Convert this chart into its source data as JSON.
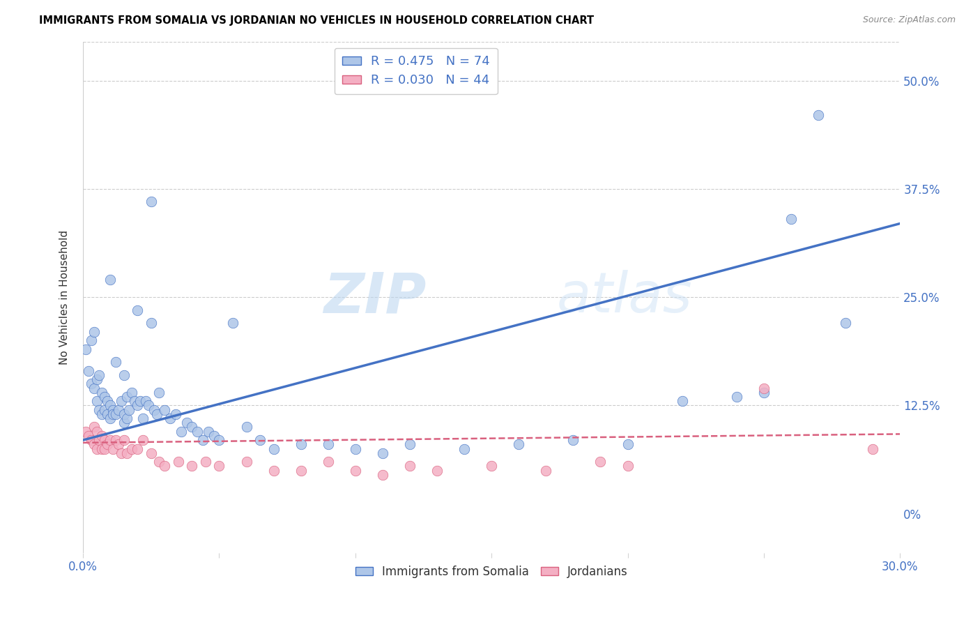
{
  "title": "IMMIGRANTS FROM SOMALIA VS JORDANIAN NO VEHICLES IN HOUSEHOLD CORRELATION CHART",
  "source": "Source: ZipAtlas.com",
  "ylabel": "No Vehicles in Household",
  "ytick_labels": [
    "0%",
    "12.5%",
    "25.0%",
    "37.5%",
    "50.0%"
  ],
  "ytick_values": [
    0.0,
    0.125,
    0.25,
    0.375,
    0.5
  ],
  "xlim": [
    0.0,
    0.3
  ],
  "ylim": [
    -0.045,
    0.545
  ],
  "legend_label1": "Immigrants from Somalia",
  "legend_label2": "Jordanians",
  "r1": 0.475,
  "n1": 74,
  "r2": 0.03,
  "n2": 44,
  "color_somalia": "#aec6e8",
  "color_somalia_line": "#4472c4",
  "color_jordan": "#f4afc3",
  "color_jordan_line": "#d9607e",
  "background_color": "#ffffff",
  "watermark_zip": "ZIP",
  "watermark_atlas": "atlas",
  "somalia_x": [
    0.001,
    0.002,
    0.003,
    0.003,
    0.004,
    0.004,
    0.005,
    0.005,
    0.006,
    0.006,
    0.007,
    0.007,
    0.008,
    0.008,
    0.009,
    0.009,
    0.01,
    0.01,
    0.011,
    0.011,
    0.012,
    0.013,
    0.014,
    0.015,
    0.015,
    0.016,
    0.016,
    0.017,
    0.018,
    0.019,
    0.02,
    0.021,
    0.022,
    0.023,
    0.024,
    0.025,
    0.026,
    0.027,
    0.028,
    0.03,
    0.032,
    0.034,
    0.036,
    0.038,
    0.04,
    0.042,
    0.044,
    0.046,
    0.048,
    0.05,
    0.055,
    0.06,
    0.065,
    0.07,
    0.08,
    0.09,
    0.1,
    0.11,
    0.12,
    0.14,
    0.16,
    0.18,
    0.2,
    0.22,
    0.24,
    0.25,
    0.26,
    0.27,
    0.28,
    0.01,
    0.012,
    0.015,
    0.02,
    0.025
  ],
  "somalia_y": [
    0.19,
    0.165,
    0.2,
    0.15,
    0.21,
    0.145,
    0.155,
    0.13,
    0.16,
    0.12,
    0.14,
    0.115,
    0.135,
    0.12,
    0.13,
    0.115,
    0.125,
    0.11,
    0.12,
    0.115,
    0.115,
    0.12,
    0.13,
    0.105,
    0.115,
    0.11,
    0.135,
    0.12,
    0.14,
    0.13,
    0.125,
    0.13,
    0.11,
    0.13,
    0.125,
    0.22,
    0.12,
    0.115,
    0.14,
    0.12,
    0.11,
    0.115,
    0.095,
    0.105,
    0.1,
    0.095,
    0.085,
    0.095,
    0.09,
    0.085,
    0.22,
    0.1,
    0.085,
    0.075,
    0.08,
    0.08,
    0.075,
    0.07,
    0.08,
    0.075,
    0.08,
    0.085,
    0.08,
    0.13,
    0.135,
    0.14,
    0.34,
    0.46,
    0.22,
    0.27,
    0.175,
    0.16,
    0.235,
    0.36
  ],
  "jordan_x": [
    0.001,
    0.002,
    0.003,
    0.004,
    0.004,
    0.005,
    0.005,
    0.006,
    0.007,
    0.007,
    0.008,
    0.008,
    0.009,
    0.01,
    0.011,
    0.012,
    0.013,
    0.014,
    0.015,
    0.016,
    0.018,
    0.02,
    0.022,
    0.025,
    0.028,
    0.03,
    0.035,
    0.04,
    0.045,
    0.05,
    0.06,
    0.07,
    0.08,
    0.09,
    0.1,
    0.11,
    0.12,
    0.13,
    0.15,
    0.17,
    0.19,
    0.2,
    0.25,
    0.29
  ],
  "jordan_y": [
    0.095,
    0.09,
    0.085,
    0.1,
    0.08,
    0.095,
    0.075,
    0.085,
    0.09,
    0.075,
    0.085,
    0.075,
    0.08,
    0.085,
    0.075,
    0.085,
    0.08,
    0.07,
    0.085,
    0.07,
    0.075,
    0.075,
    0.085,
    0.07,
    0.06,
    0.055,
    0.06,
    0.055,
    0.06,
    0.055,
    0.06,
    0.05,
    0.05,
    0.06,
    0.05,
    0.045,
    0.055,
    0.05,
    0.055,
    0.05,
    0.06,
    0.055,
    0.145,
    0.075
  ],
  "somalia_line_x": [
    0.0,
    0.3
  ],
  "somalia_line_y": [
    0.085,
    0.335
  ],
  "jordan_line_x": [
    0.0,
    0.3
  ],
  "jordan_line_y": [
    0.082,
    0.092
  ]
}
